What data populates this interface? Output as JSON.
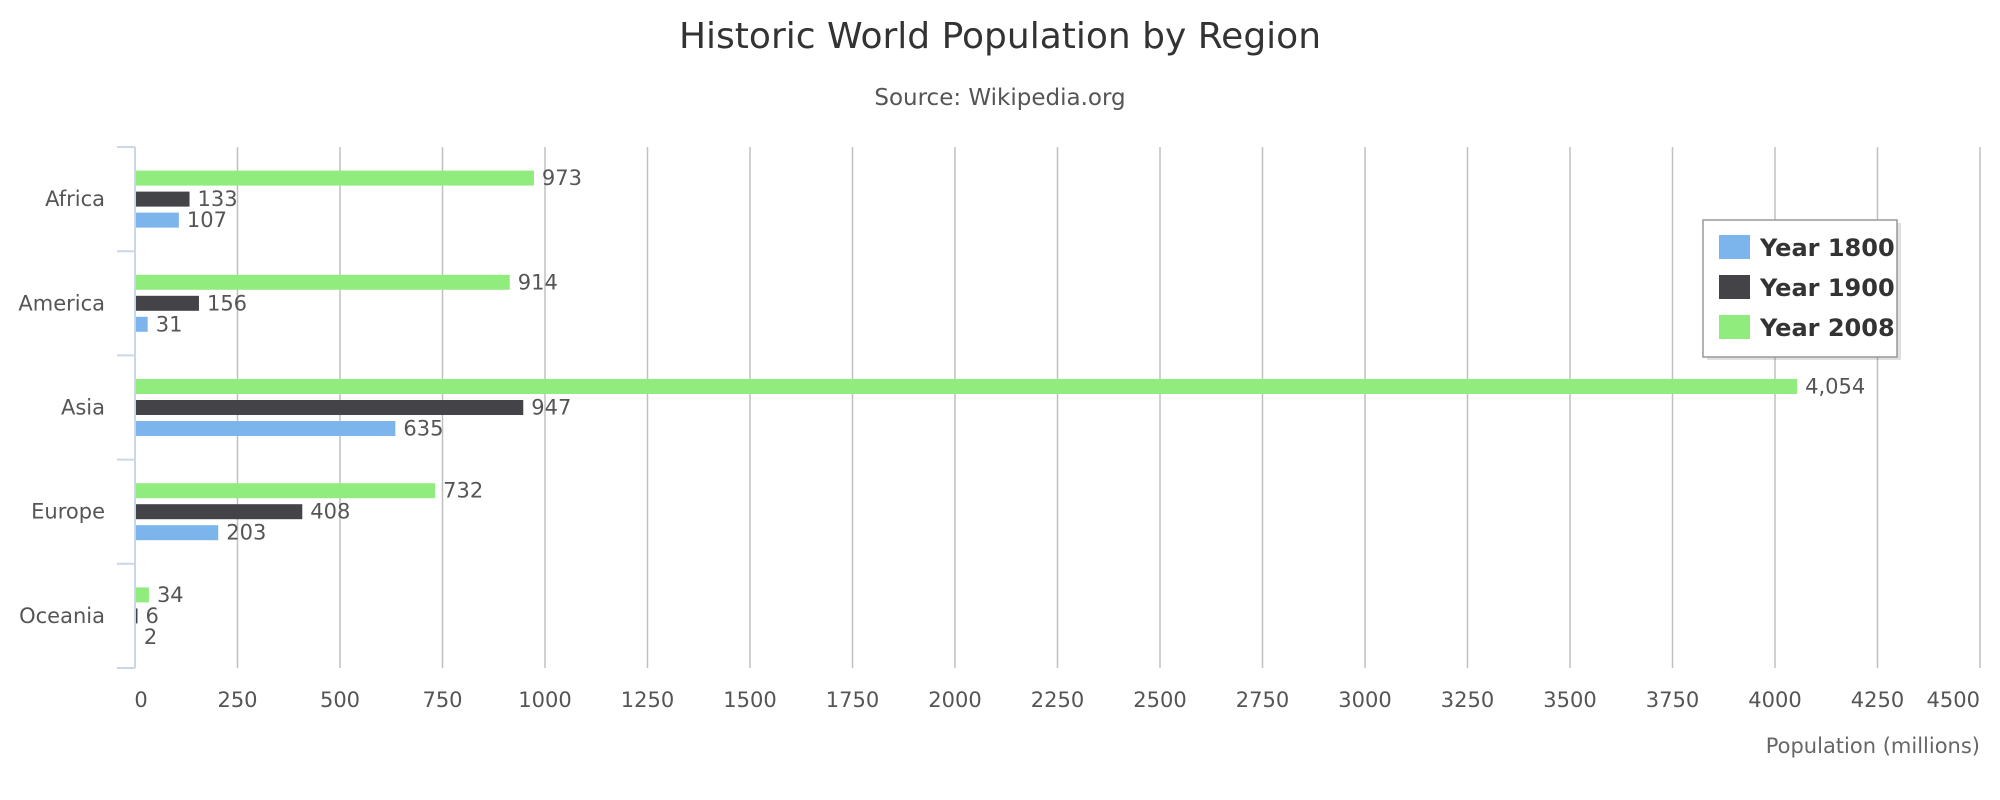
{
  "chart_data": {
    "type": "bar",
    "orientation": "horizontal",
    "title": "Historic World Population by Region",
    "subtitle": "Source: Wikipedia.org",
    "xlabel": "Population (millions)",
    "ylabel": "",
    "categories": [
      "Africa",
      "America",
      "Asia",
      "Europe",
      "Oceania"
    ],
    "series": [
      {
        "name": "Year 1800",
        "color": "#7cb5ec",
        "values": [
          107,
          31,
          635,
          203,
          2
        ],
        "labels": [
          "107",
          "31",
          "635",
          "203",
          "2"
        ]
      },
      {
        "name": "Year 1900",
        "color": "#434348",
        "values": [
          133,
          156,
          947,
          408,
          6
        ],
        "labels": [
          "133",
          "156",
          "947",
          "408",
          "6"
        ]
      },
      {
        "name": "Year 2008",
        "color": "#90ed7d",
        "values": [
          973,
          914,
          4054,
          732,
          34
        ],
        "labels": [
          "973",
          "914",
          "4,054",
          "732",
          "34"
        ]
      }
    ],
    "xlim": [
      0,
      4500
    ],
    "x_ticks": [
      "0",
      "250",
      "500",
      "750",
      "1000",
      "1250",
      "1500",
      "1750",
      "2000",
      "2250",
      "2500",
      "2750",
      "3000",
      "3250",
      "3500",
      "3750",
      "4000",
      "4250",
      "4500"
    ],
    "grid": true,
    "legend_position": "top-right"
  }
}
